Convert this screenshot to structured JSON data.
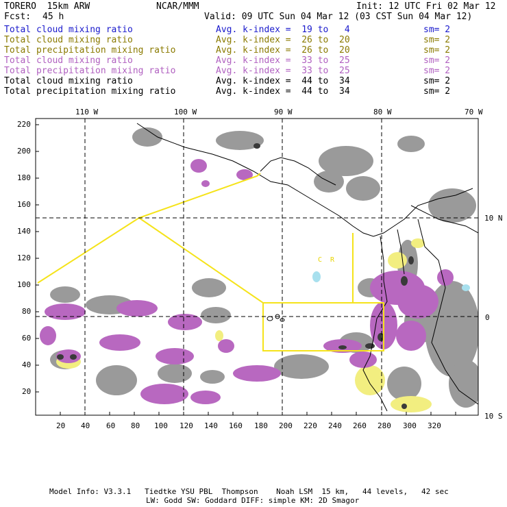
{
  "header": {
    "model": "TORERO  15km ARW",
    "org": "NCAR/MMM",
    "init": "Init: 12 UTC Fri 02 Mar 12",
    "fcst_label": "Fcst:",
    "fcst_value": "45 h",
    "valid": "Valid: 09 UTC Sun 04 Mar 12 (03 CST Sun 04 Mar 12)"
  },
  "legend": [
    {
      "field": "Total cloud mixing ratio",
      "range": "Avg. k-index =  19 to   4",
      "sm": "sm= 2",
      "color": "#1a1acc"
    },
    {
      "field": "Total cloud mixing ratio",
      "range": "Avg. k-index =  26 to  20",
      "sm": "sm= 2",
      "color": "#8a7a00"
    },
    {
      "field": "Total precipitation mixing ratio",
      "range": "Avg. k-index =  26 to  20",
      "sm": "sm= 2",
      "color": "#8a7a00"
    },
    {
      "field": "Total cloud mixing ratio",
      "range": "Avg. k-index =  33 to  25",
      "sm": "sm= 2",
      "color": "#b060c0"
    },
    {
      "field": "Total precipitation mixing ratio",
      "range": "Avg. k-index =  33 to  25",
      "sm": "sm= 2",
      "color": "#b060c0"
    },
    {
      "field": "Total cloud mixing ratio",
      "range": "Avg. k-index =  44 to  34",
      "sm": "sm= 2",
      "color": "#000000"
    },
    {
      "field": "Total precipitation mixing ratio",
      "range": "Avg. k-index =  44 to  34",
      "sm": "sm= 2",
      "color": "#000000"
    }
  ],
  "axes": {
    "top_longitudes": [
      "110 W",
      "100 W",
      "90 W",
      "80 W",
      "70 W"
    ],
    "right_latitudes": [
      "10 N",
      "0",
      "10 S"
    ],
    "y_ticks": [
      "220",
      "200",
      "180",
      "160",
      "140",
      "120",
      "100",
      "80",
      "60",
      "40",
      "20"
    ],
    "x_ticks": [
      "20",
      "40",
      "60",
      "80",
      "100",
      "120",
      "140",
      "160",
      "180",
      "200",
      "220",
      "240",
      "260",
      "280",
      "300",
      "320"
    ]
  },
  "map_labels": {
    "region_marker": "C  R"
  },
  "colors": {
    "cloud_gray": "#9a9a9a",
    "purple": "#b868c0",
    "yellow": "#f2ee80",
    "outline": "#f5e31a",
    "dark": "#3a3a3a"
  },
  "footer": {
    "line1": "Model Info: V3.3.1   Tiedtke YSU PBL  Thompson    Noah LSM  15 km,   44 levels,   42 sec",
    "line2": "LW: Godd SW: Goddard DIFF: simple KM: 2D Smagor"
  }
}
